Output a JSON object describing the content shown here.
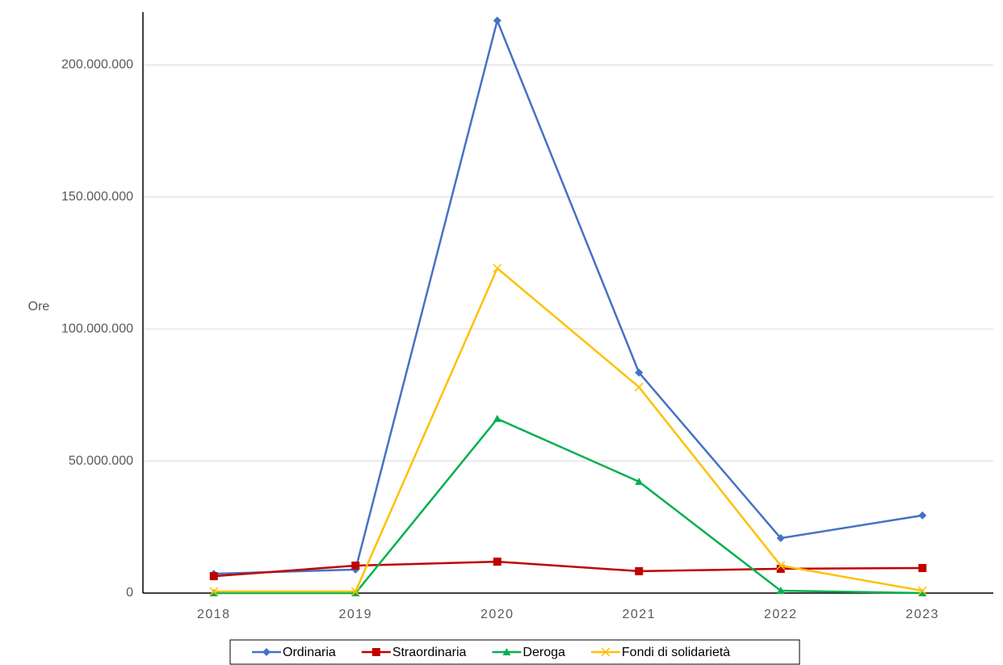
{
  "chart_data": {
    "type": "line",
    "y_label": "Ore",
    "categories": [
      "2018",
      "2019",
      "2020",
      "2021",
      "2022",
      "2023"
    ],
    "series": [
      {
        "name": "Ordinaria",
        "color": "#4472c4",
        "marker": "diamond",
        "values": [
          7300000,
          8900000,
          216800000,
          83500000,
          20800000,
          29400000
        ]
      },
      {
        "name": "Straordinaria",
        "color": "#c00000",
        "marker": "square",
        "values": [
          6400000,
          10400000,
          11900000,
          8300000,
          9200000,
          9500000
        ]
      },
      {
        "name": "Deroga",
        "color": "#00b050",
        "marker": "triangle",
        "values": [
          0,
          0,
          66000000,
          42200000,
          900000,
          0
        ]
      },
      {
        "name": "Fondi di solidarietà",
        "color": "#ffc000",
        "marker": "x",
        "values": [
          600000,
          600000,
          123000000,
          78000000,
          10400000,
          900000
        ]
      }
    ],
    "ylim": [
      0,
      220000000
    ],
    "yticks": [
      0,
      {
        "value": 50000000,
        "label": "50.000.000"
      },
      {
        "value": 100000000,
        "label": "100.000.000"
      },
      {
        "value": 150000000,
        "label": "150.000.000"
      },
      {
        "value": 200000000,
        "label": "200.000.000"
      }
    ],
    "grid": true,
    "legend": "bottom"
  }
}
